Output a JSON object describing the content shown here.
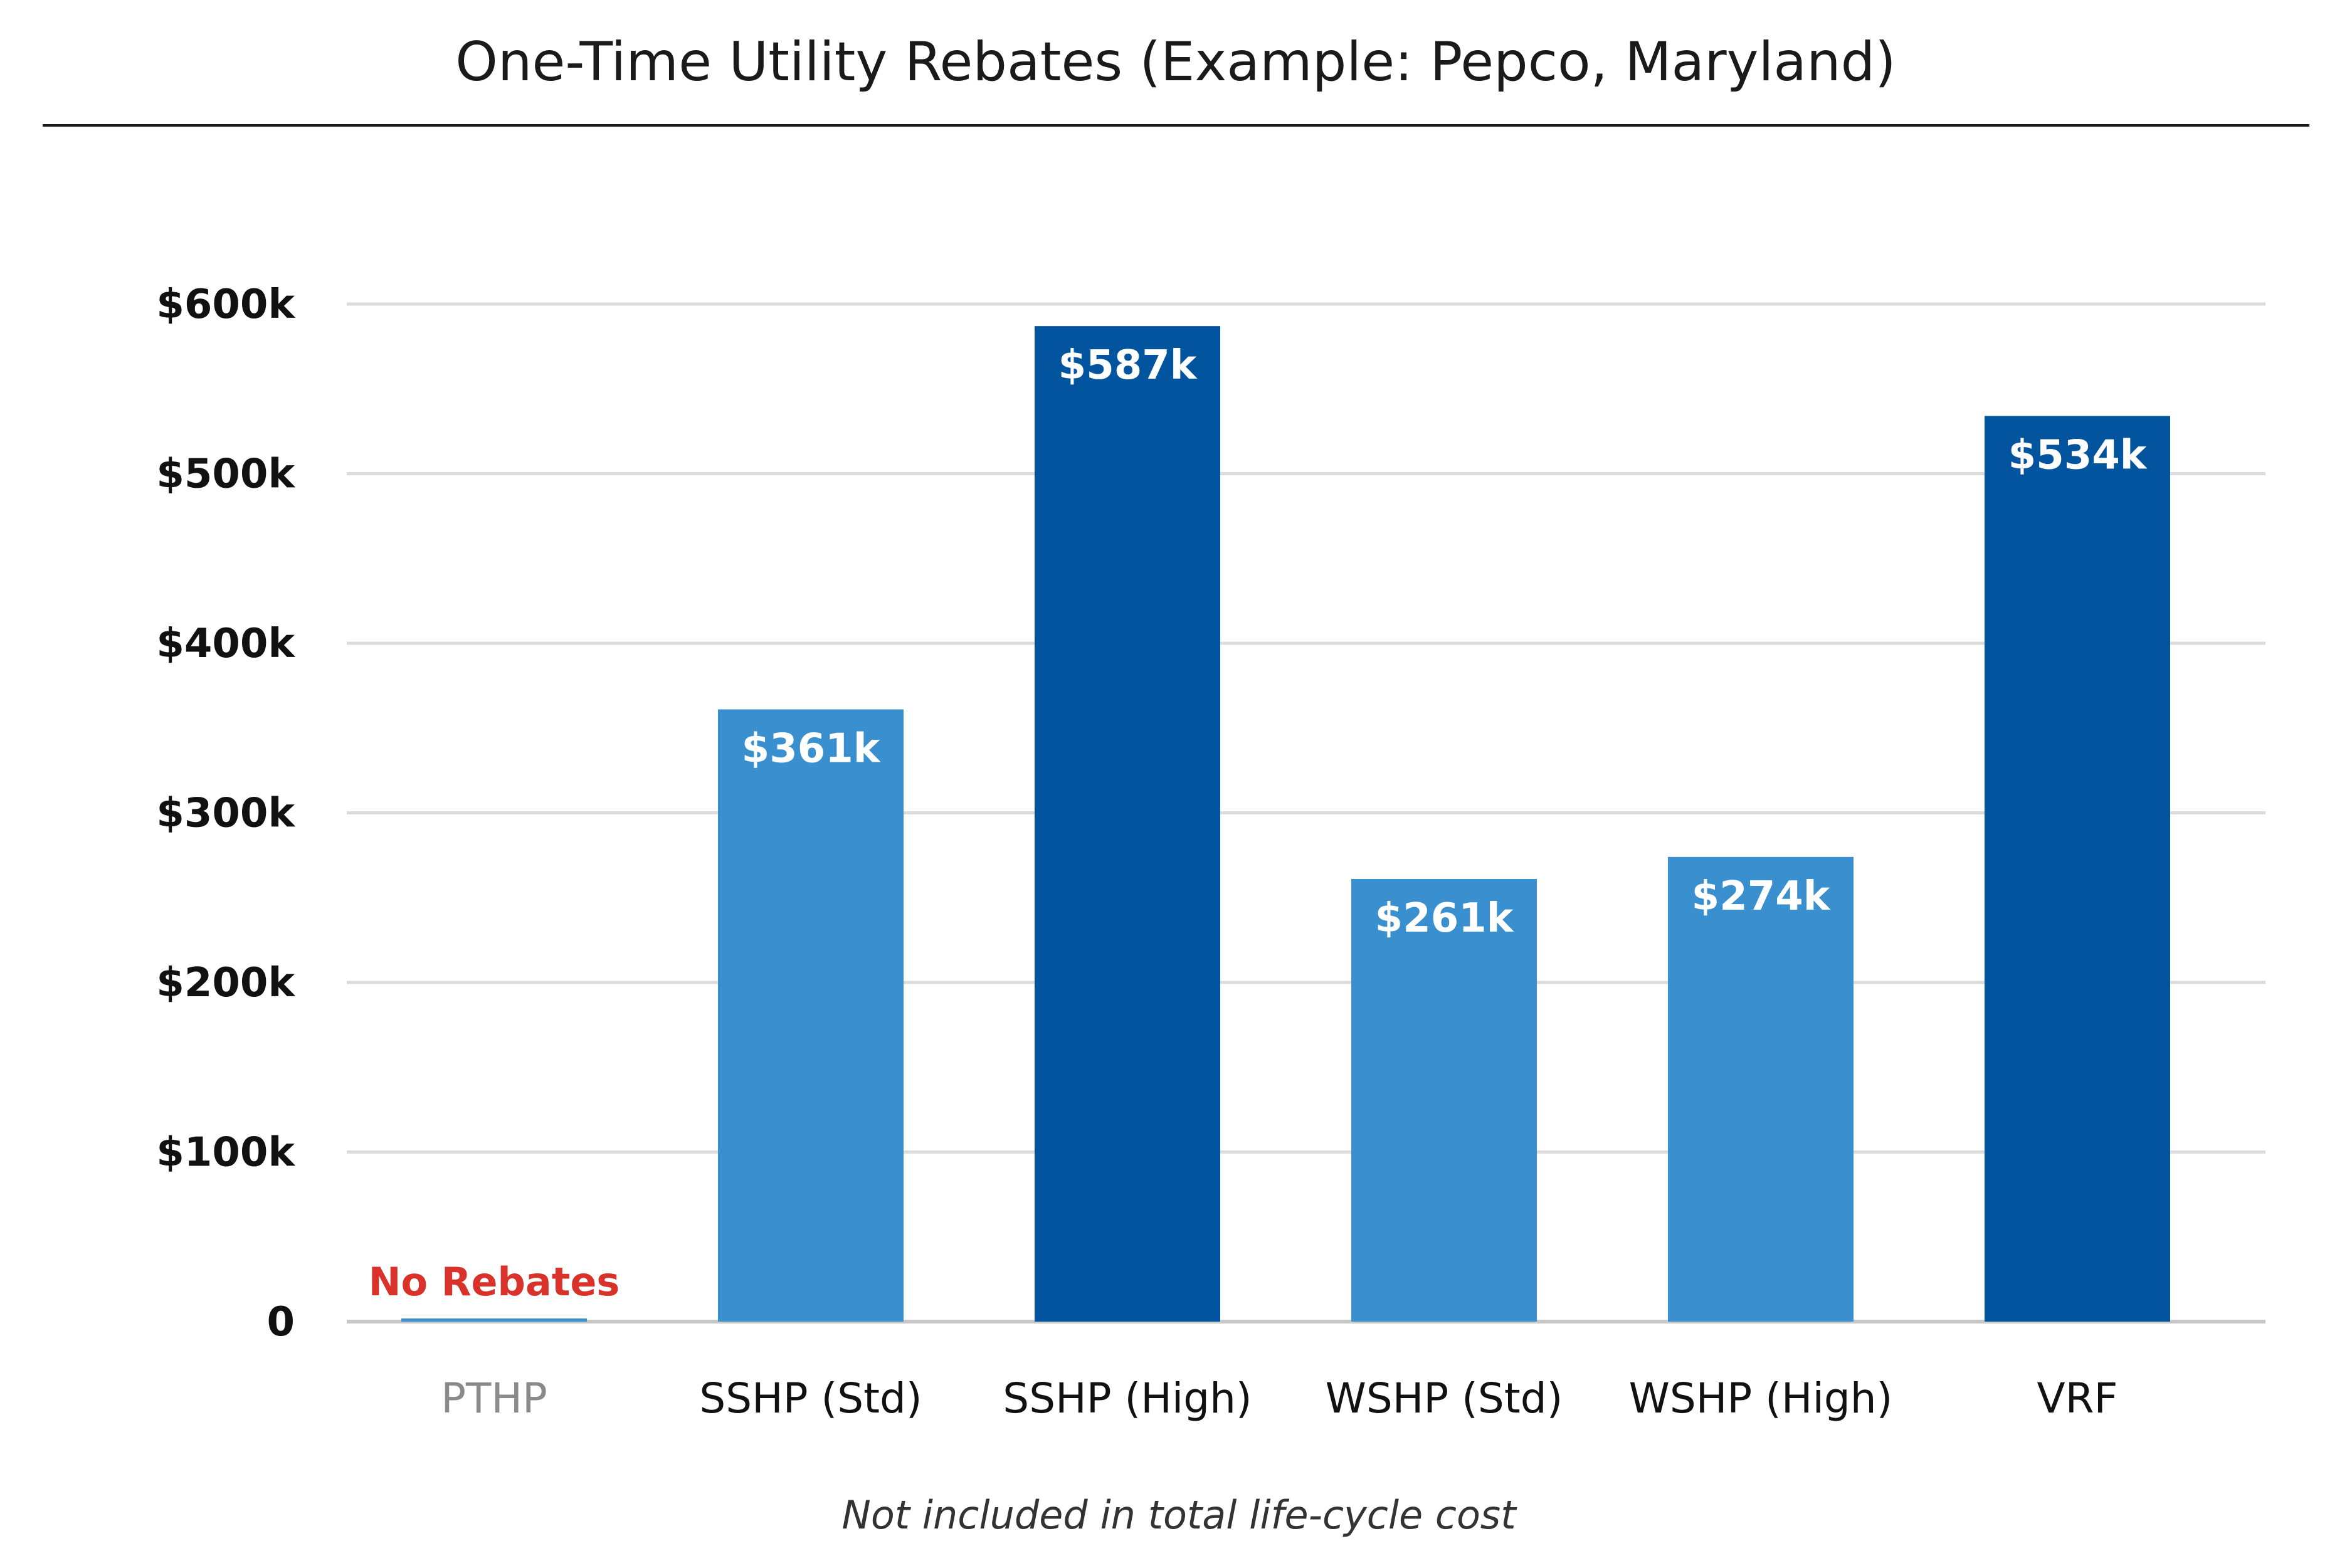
{
  "chart_data": {
    "type": "bar",
    "title": "One-Time Utility Rebates (Example: Pepco, Maryland)",
    "categories": [
      "PTHP",
      "SSHP (Std)",
      "SSHP (High)",
      "WSHP (Std)",
      "WSHP (High)",
      "VRF"
    ],
    "values": [
      0,
      361,
      587,
      261,
      274,
      534
    ],
    "value_labels": [
      "No Rebates",
      "$361k",
      "$587k",
      "$261k",
      "$274k",
      "$534k"
    ],
    "unit": "$k",
    "ylim": [
      0,
      600
    ],
    "yticks": [
      0,
      100,
      200,
      300,
      400,
      500,
      600
    ],
    "ytick_labels": [
      "0",
      "$100k",
      "$200k",
      "$300k",
      "$400k",
      "$500k",
      "$600k"
    ],
    "grid": true,
    "colors": {
      "light": "#3a8fce",
      "dark": "#03549e",
      "no_rebate_line": "#3a8fce",
      "no_rebate_text": "#d9322a",
      "muted_tick": "#8a8a8a"
    },
    "bar_shades": [
      "light",
      "light",
      "dark",
      "light",
      "light",
      "dark"
    ],
    "footnote": "Not included in total life-cycle cost"
  }
}
